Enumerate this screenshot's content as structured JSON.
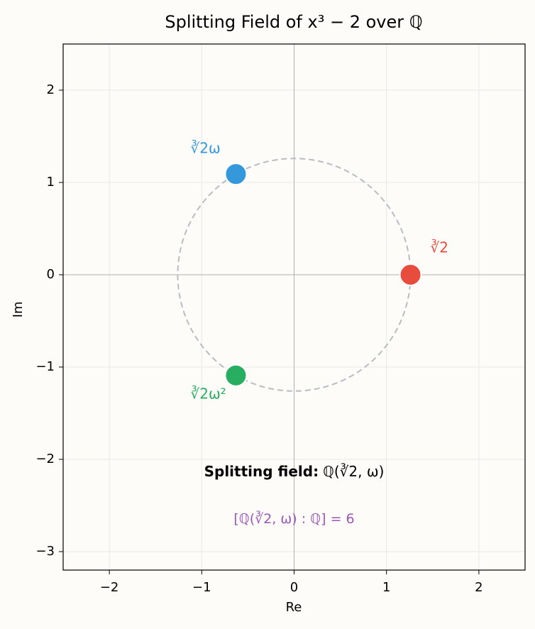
{
  "chart_data": {
    "type": "scatter",
    "title": "Splitting Field of x³ − 2 over ℚ",
    "xlabel": "Re",
    "ylabel": "Im",
    "xlim": [
      -2.5,
      2.5
    ],
    "ylim": [
      -3.2,
      2.5
    ],
    "xticks": [
      {
        "value": -2,
        "label": "−2"
      },
      {
        "value": -1,
        "label": "−1"
      },
      0,
      1,
      2
    ],
    "yticks": [
      {
        "value": -3,
        "label": "−3"
      },
      {
        "value": -2,
        "label": "−2"
      },
      {
        "value": -1,
        "label": "−1"
      },
      0,
      1,
      2
    ],
    "grid": true,
    "circle": {
      "radius": 1.26,
      "color": "#b8bcc4"
    },
    "points": [
      {
        "label": "∛2",
        "x": 1.26,
        "y": 0,
        "color": "#e74c3c"
      },
      {
        "label": "∛2ω",
        "x": -0.63,
        "y": 1.091,
        "color": "#3498db"
      },
      {
        "label": "∛2ω²",
        "x": -0.63,
        "y": -1.091,
        "color": "#27ae60"
      }
    ],
    "annotations": [
      {
        "bold": "Splitting field:",
        "text": "ℚ(∛2, ω)",
        "color": "#000000"
      },
      {
        "text": "[ℚ(∛2, ω) : ℚ] = 6",
        "color": "#9b59b6"
      }
    ]
  }
}
